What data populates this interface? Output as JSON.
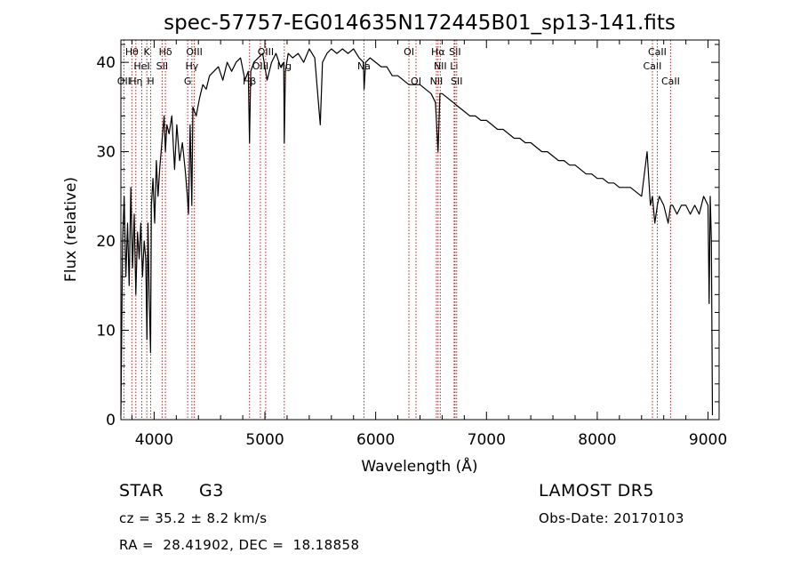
{
  "chart_data": {
    "type": "line",
    "title": "spec-57757-EG014635N172445B01_sp13-141.fits",
    "xlabel": "Wavelength (Å)",
    "ylabel": "Flux (relative)",
    "xlim": [
      3700,
      9100
    ],
    "ylim": [
      0,
      42.5
    ],
    "xticks": [
      4000,
      5000,
      6000,
      7000,
      8000,
      9000
    ],
    "yticks": [
      0,
      10,
      20,
      30,
      40
    ],
    "grid": false,
    "line_color": "#000000",
    "marker_color": "#b22222",
    "series": [
      {
        "x": [
          3700,
          3715,
          3730,
          3745,
          3760,
          3775,
          3790,
          3805,
          3820,
          3835,
          3850,
          3865,
          3880,
          3895,
          3910,
          3925,
          3935,
          3945,
          3955,
          3968,
          3975,
          3990,
          4005,
          4020,
          4035,
          4050,
          4070,
          4090,
          4102,
          4115,
          4135,
          4160,
          4185,
          4205,
          4230,
          4255,
          4280,
          4300,
          4310,
          4325,
          4340,
          4350,
          4380,
          4410,
          4440,
          4470,
          4500,
          4540,
          4580,
          4620,
          4660,
          4700,
          4740,
          4780,
          4820,
          4850,
          4861,
          4872,
          4900,
          4940,
          4980,
          5020,
          5060,
          5100,
          5140,
          5170,
          5175,
          5185,
          5210,
          5250,
          5300,
          5350,
          5400,
          5450,
          5480,
          5500,
          5520,
          5560,
          5600,
          5650,
          5700,
          5750,
          5800,
          5850,
          5890,
          5895,
          5910,
          5950,
          6000,
          6050,
          6100,
          6150,
          6200,
          6250,
          6300,
          6350,
          6400,
          6450,
          6500,
          6540,
          6563,
          6580,
          6600,
          6650,
          6700,
          6750,
          6800,
          6850,
          6900,
          6950,
          7000,
          7050,
          7100,
          7150,
          7200,
          7250,
          7300,
          7350,
          7400,
          7450,
          7500,
          7550,
          7600,
          7650,
          7700,
          7750,
          7800,
          7850,
          7900,
          7950,
          8000,
          8050,
          8100,
          8150,
          8200,
          8250,
          8300,
          8350,
          8400,
          8450,
          8480,
          8498,
          8520,
          8542,
          8560,
          8600,
          8640,
          8662,
          8680,
          8720,
          8760,
          8800,
          8840,
          8880,
          8920,
          8960,
          9000,
          9010,
          9020,
          9030,
          9040
        ],
        "y": [
          0.5,
          20,
          25,
          16,
          22,
          15,
          26,
          17,
          23,
          14,
          21,
          18,
          22,
          16,
          20,
          18,
          9,
          22,
          14,
          7.5,
          24,
          27,
          22,
          29,
          25,
          28,
          31,
          34,
          30,
          33,
          32,
          34,
          28,
          33,
          29,
          31,
          28,
          25,
          23,
          33,
          24,
          35,
          34,
          36,
          37.5,
          37,
          38.5,
          39,
          39.5,
          38,
          40,
          39,
          40,
          40.5,
          38,
          39,
          31,
          39,
          40,
          40.5,
          41,
          38,
          40,
          41,
          39.5,
          40,
          31,
          39,
          41,
          40.5,
          41,
          40,
          41.5,
          40.5,
          36,
          33,
          40,
          41,
          41.5,
          41,
          41.5,
          41,
          41.5,
          40.5,
          40,
          37,
          40,
          40.5,
          40,
          39.5,
          39.5,
          38.5,
          38.5,
          38,
          37.5,
          37.5,
          37.5,
          37,
          36.5,
          35.5,
          30,
          36.5,
          36.5,
          36,
          35.5,
          35,
          34.5,
          34,
          34,
          33.5,
          33.5,
          33,
          32.5,
          32.5,
          32,
          31.5,
          31.5,
          31,
          31,
          30.5,
          30,
          30,
          29.5,
          29,
          29,
          28.5,
          28.5,
          28,
          27.5,
          27.5,
          27,
          27,
          26.5,
          26.5,
          26,
          26,
          26,
          25.5,
          25,
          30,
          24,
          25,
          22,
          24,
          25,
          24,
          22,
          24,
          24,
          23,
          24,
          24,
          23,
          24,
          23,
          25,
          24,
          13,
          25,
          20,
          0.5
        ]
      }
    ],
    "line_markers": [
      {
        "x": 3727,
        "label": "OII",
        "row": 3
      },
      {
        "x": 3799,
        "label": "Hθ",
        "row": 1
      },
      {
        "x": 3835,
        "label": "Hη",
        "row": 3
      },
      {
        "x": 3889,
        "label": "HeI",
        "row": 2
      },
      {
        "x": 3934,
        "label": "K",
        "row": 1
      },
      {
        "x": 3969,
        "label": "H",
        "row": 3
      },
      {
        "x": 4072,
        "label": "SII",
        "row": 2
      },
      {
        "x": 4102,
        "label": "Hδ",
        "row": 1
      },
      {
        "x": 4303,
        "label": "G",
        "row": 3
      },
      {
        "x": 4341,
        "label": "Hγ",
        "row": 2
      },
      {
        "x": 4363,
        "label": "OIII",
        "row": 1
      },
      {
        "x": 4861,
        "label": "Hβ",
        "row": 3
      },
      {
        "x": 4959,
        "label": "OIII",
        "row": 2
      },
      {
        "x": 5007,
        "label": "OIII",
        "row": 1
      },
      {
        "x": 5175,
        "label": "Mg",
        "row": 2
      },
      {
        "x": 5894,
        "label": "Na",
        "row": 2
      },
      {
        "x": 6300,
        "label": "OI",
        "row": 1
      },
      {
        "x": 6364,
        "label": "OI",
        "row": 3
      },
      {
        "x": 6548,
        "label": "NII",
        "row": 3
      },
      {
        "x": 6563,
        "label": "Hα",
        "row": 1
      },
      {
        "x": 6583,
        "label": "NII",
        "row": 2
      },
      {
        "x": 6708,
        "label": "Li",
        "row": 2
      },
      {
        "x": 6716,
        "label": "SII",
        "row": 1
      },
      {
        "x": 6731,
        "label": "SII",
        "row": 3
      },
      {
        "x": 8498,
        "label": "CaII",
        "row": 2
      },
      {
        "x": 8542,
        "label": "CaII",
        "row": 1
      },
      {
        "x": 8662,
        "label": "CaII",
        "row": 3
      }
    ]
  },
  "info": {
    "class_label": "STAR",
    "subclass": "G3",
    "survey": "LAMOST DR5",
    "redshift": "cz = 35.2 ± 8.2 km/s",
    "obs_date": "Obs-Date: 20170103",
    "coords": "RA =  28.41902, DEC =  18.18858"
  }
}
